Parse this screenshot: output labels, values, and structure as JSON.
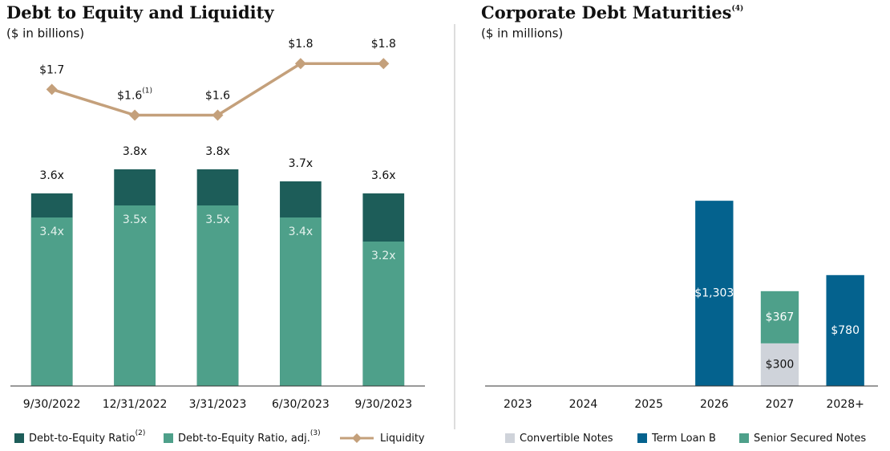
{
  "chart_data": [
    {
      "type": "bar_line",
      "bar_mode": "overlap",
      "title": "Debt to Equity and Liquidity",
      "subtitle": "($ in billions)",
      "categories": [
        "9/30/2022",
        "12/31/2022",
        "3/31/2023",
        "6/30/2023",
        "9/30/2023"
      ],
      "series": [
        {
          "name": "Debt-to-Equity Ratio",
          "footnote": "(2)",
          "color": "#1d5d59",
          "values": [
            3.6,
            3.8,
            3.8,
            3.7,
            3.6
          ],
          "value_labels": [
            "3.6x",
            "3.8x",
            "3.8x",
            "3.7x",
            "3.6x"
          ]
        },
        {
          "name": "Debt-to-Equity Ratio, adj.",
          "footnote": "(3)",
          "color": "#4ea08a",
          "values": [
            3.4,
            3.5,
            3.5,
            3.4,
            3.2
          ],
          "value_labels": [
            "3.4x",
            "3.5x",
            "3.5x",
            "3.4x",
            "3.2x"
          ]
        },
        {
          "name": "Liquidity",
          "color": "#c4a07b",
          "axis": "y2",
          "values": [
            1.7,
            1.6,
            1.6,
            1.8,
            1.8
          ],
          "value_labels": [
            "$1.7",
            "$1.6",
            "$1.6",
            "$1.8",
            "$1.8"
          ],
          "label_footnotes": [
            null,
            "(1)",
            null,
            null,
            null
          ]
        }
      ],
      "ylim": [
        2,
        5
      ],
      "y2lim": [
        0.55,
        1.95
      ]
    },
    {
      "type": "stacked_bar",
      "bar_mode": "stacked",
      "title": "Corporate Debt Maturities",
      "title_footnote": "(4)",
      "subtitle": "($ in millions)",
      "categories": [
        "2023",
        "2024",
        "2025",
        "2026",
        "2027",
        "2028+"
      ],
      "series": [
        {
          "name": "Convertible Notes",
          "color": "#cfd3da",
          "values": [
            null,
            null,
            null,
            null,
            300,
            null
          ],
          "value_labels": [
            null,
            null,
            null,
            null,
            "$300",
            null
          ]
        },
        {
          "name": "Term Loan B",
          "color": "#04628e",
          "values": [
            null,
            null,
            null,
            1303,
            null,
            780
          ],
          "value_labels": [
            null,
            null,
            null,
            "$1,303",
            null,
            "$780"
          ]
        },
        {
          "name": "Senior Secured Notes",
          "color": "#4ea08a",
          "values": [
            null,
            null,
            null,
            null,
            367,
            null
          ],
          "value_labels": [
            null,
            null,
            null,
            null,
            "$367",
            null
          ]
        }
      ],
      "ylim": [
        0,
        2540
      ]
    }
  ]
}
